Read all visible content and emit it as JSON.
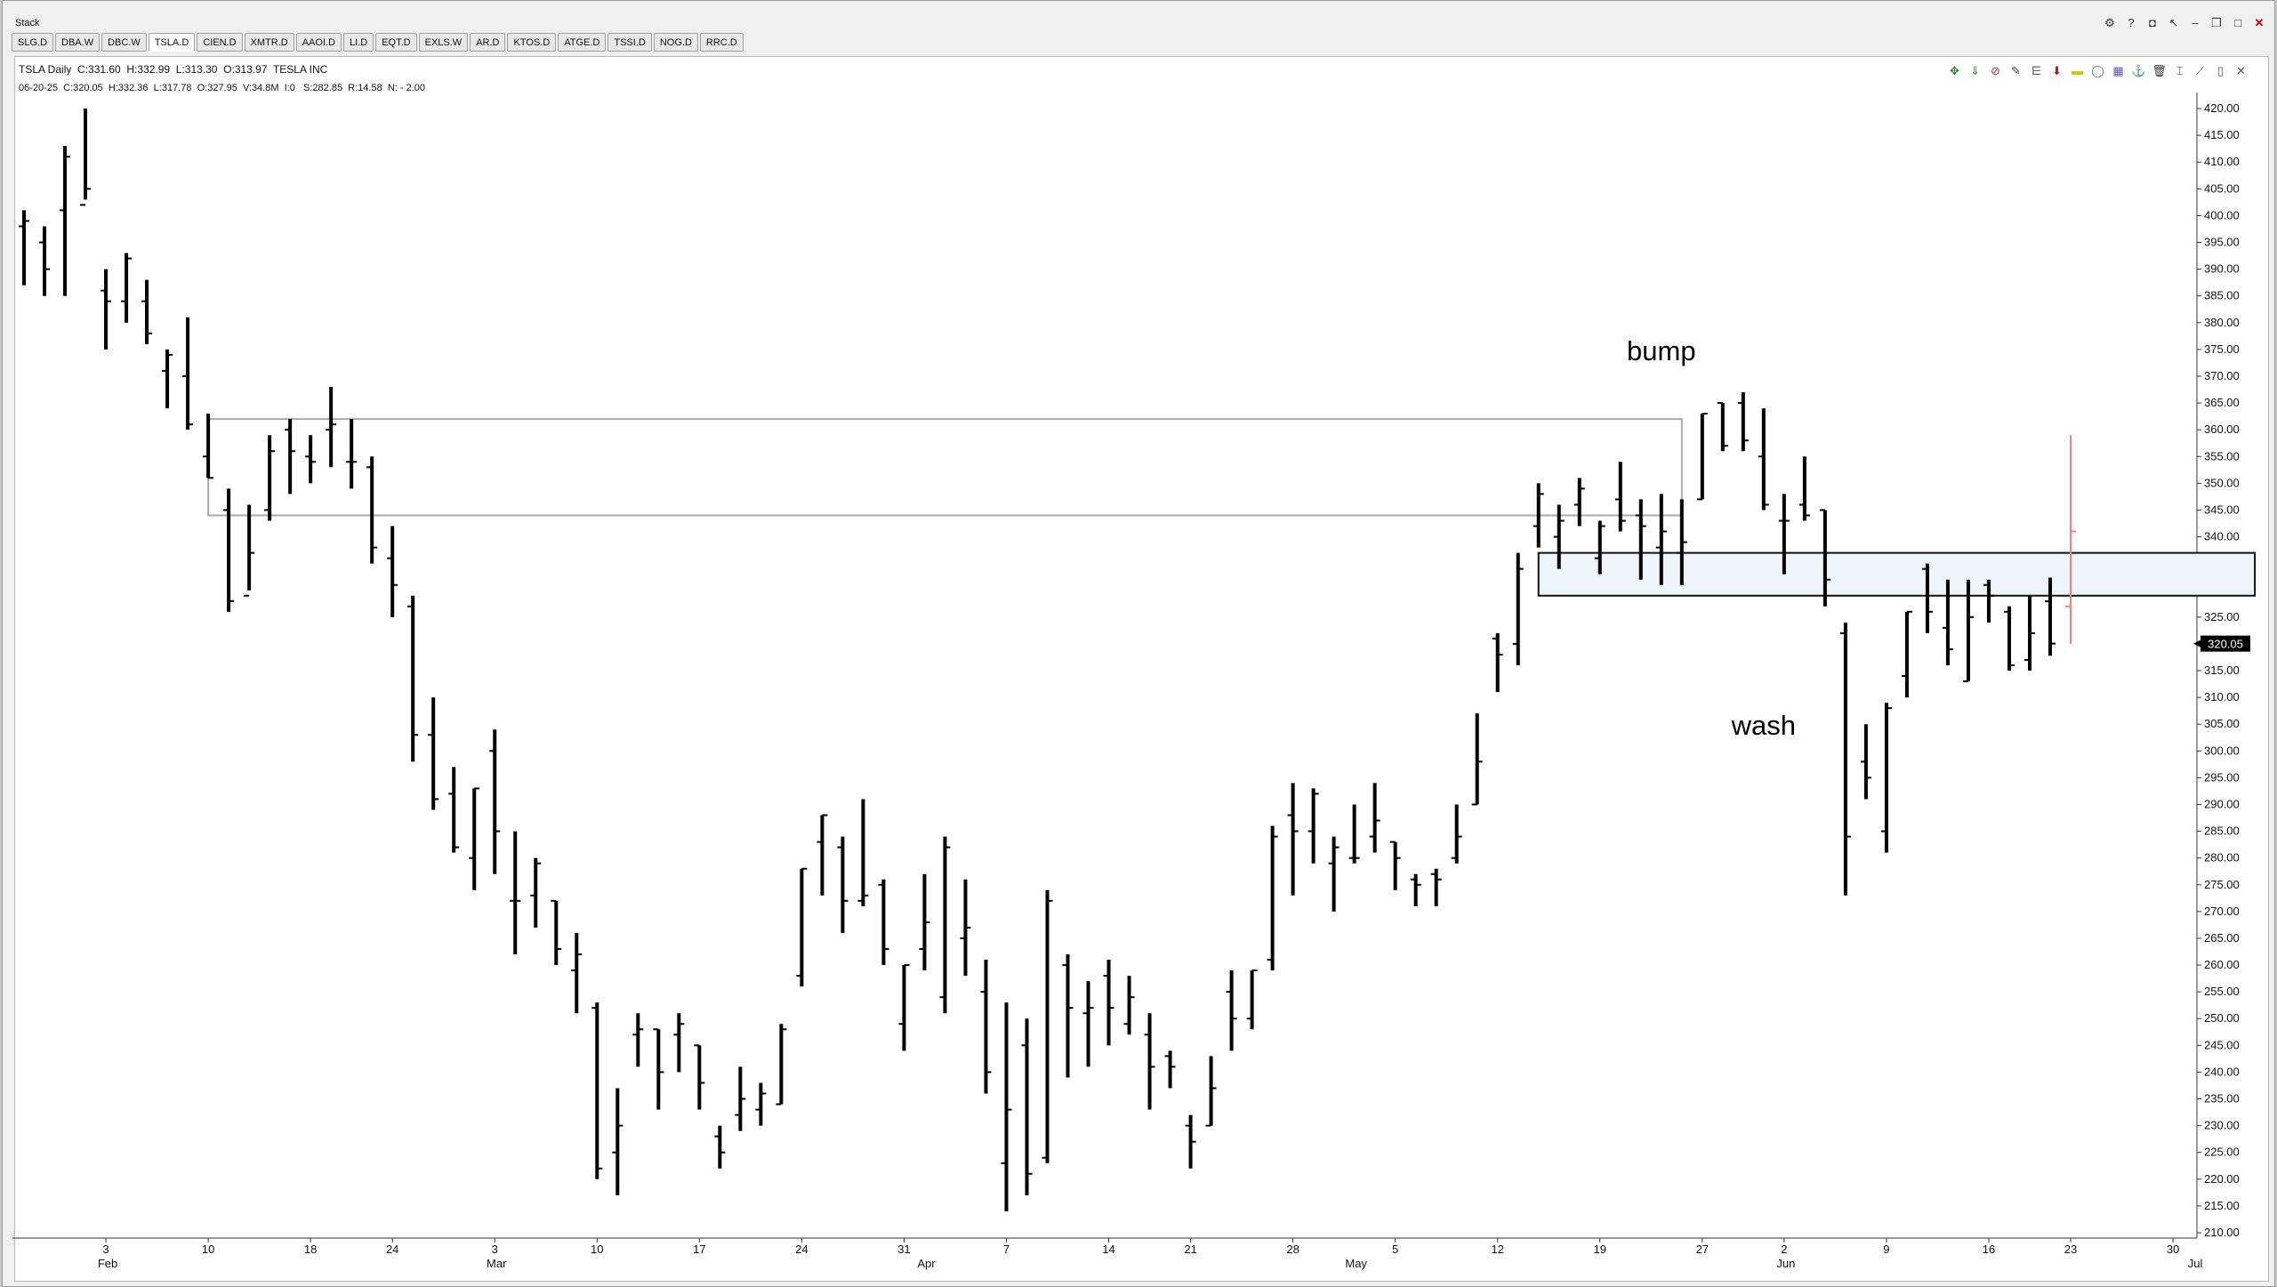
{
  "window": {
    "title": "Stack"
  },
  "window_buttons": [
    {
      "name": "chart-settings-icon",
      "glyph": "⚙"
    },
    {
      "name": "help-icon",
      "glyph": "?"
    },
    {
      "name": "camera-icon",
      "glyph": "◘"
    },
    {
      "name": "pointer-icon",
      "glyph": "↖"
    },
    {
      "name": "minimize-icon",
      "glyph": "–"
    },
    {
      "name": "restore-icon",
      "glyph": "❐"
    },
    {
      "name": "maximize-icon",
      "glyph": "□"
    },
    {
      "name": "close-icon",
      "glyph": "✕"
    }
  ],
  "tabs": [
    {
      "label": "SLG.D"
    },
    {
      "label": "DBA.W"
    },
    {
      "label": "DBC.W"
    },
    {
      "label": "TSLA.D",
      "active": true
    },
    {
      "label": "CIEN.D"
    },
    {
      "label": "XMTR.D"
    },
    {
      "label": "AAOI.D"
    },
    {
      "label": "LI.D"
    },
    {
      "label": "EQT.D"
    },
    {
      "label": "EXLS.W"
    },
    {
      "label": "AR.D"
    },
    {
      "label": "KTOS.D"
    },
    {
      "label": "ATGE.D"
    },
    {
      "label": "TSSI.D"
    },
    {
      "label": "NOG.D"
    },
    {
      "label": "RRC.D"
    }
  ],
  "header": {
    "symbol_line": "TSLA Daily  C:331.60  H:332.99  L:313.30  O:313.97  TESLA INC",
    "bar_line": "06-20-25  C:320.05  H:332.36  L:317.78  O:327.95  V:34.8M  I:0   S:282.85  R:14.58  N: - 2.00"
  },
  "toolbar": [
    {
      "name": "zoom-icon",
      "glyph": "✥",
      "color": "#2a7a2a"
    },
    {
      "name": "green-arrow-icon",
      "glyph": "⇓",
      "color": "#1a9a1a"
    },
    {
      "name": "no-entry-icon",
      "glyph": "⊘",
      "color": "#cc2222"
    },
    {
      "name": "pencil-icon",
      "glyph": "✎",
      "color": "#444"
    },
    {
      "name": "fibonacci-icon",
      "glyph": "⋿",
      "color": "#555"
    },
    {
      "name": "red-arrow-icon",
      "glyph": "⬇",
      "color": "#cc1111"
    },
    {
      "name": "rectangle-icon",
      "glyph": "▬",
      "color": "#d8c400"
    },
    {
      "name": "circle-icon",
      "glyph": "◯",
      "color": "#6666cc"
    },
    {
      "name": "grid-icon",
      "glyph": "▦",
      "color": "#5a5aa0"
    },
    {
      "name": "anchor-icon",
      "glyph": "⚓",
      "color": "#666"
    },
    {
      "name": "trash-icon",
      "glyph": "🗑",
      "color": "#333"
    },
    {
      "name": "cursor-icon",
      "glyph": "⌶",
      "color": "#333"
    },
    {
      "name": "draw-tools-icon",
      "glyph": "⟋",
      "color": "#555"
    },
    {
      "name": "lock-icon",
      "glyph": "▯",
      "color": "#555"
    },
    {
      "name": "crosshair-icon",
      "glyph": "✕",
      "color": "#555"
    }
  ],
  "chart_data": {
    "type": "ohlc",
    "symbol": "TSLA",
    "ylim": [
      209,
      423
    ],
    "y_ticks": [
      210,
      215,
      220,
      225,
      230,
      235,
      240,
      245,
      250,
      255,
      260,
      265,
      270,
      275,
      280,
      285,
      290,
      295,
      300,
      305,
      310,
      315,
      320,
      325,
      330,
      335,
      340,
      345,
      350,
      355,
      360,
      365,
      370,
      375,
      380,
      385,
      390,
      395,
      400,
      405,
      410,
      415,
      420
    ],
    "last_price_label": "320.05",
    "bars": [
      {
        "date": "2025-01-28",
        "o": 398,
        "h": 401,
        "l": 387,
        "c": 399
      },
      {
        "date": "2025-01-29",
        "o": 395,
        "h": 398,
        "l": 385,
        "c": 390
      },
      {
        "date": "2025-01-30",
        "o": 401,
        "h": 413,
        "l": 385,
        "c": 411
      },
      {
        "date": "2025-01-31",
        "o": 402,
        "h": 420,
        "l": 403,
        "c": 405
      },
      {
        "date": "2025-02-03",
        "o": 386,
        "h": 390,
        "l": 375,
        "c": 384
      },
      {
        "date": "2025-02-04",
        "o": 384,
        "h": 393,
        "l": 380,
        "c": 392
      },
      {
        "date": "2025-02-05",
        "o": 384,
        "h": 388,
        "l": 376,
        "c": 378
      },
      {
        "date": "2025-02-06",
        "o": 371,
        "h": 375,
        "l": 364,
        "c": 374
      },
      {
        "date": "2025-02-07",
        "o": 370,
        "h": 381,
        "l": 360,
        "c": 361
      },
      {
        "date": "2025-02-10",
        "o": 355,
        "h": 363,
        "l": 351,
        "c": 351
      },
      {
        "date": "2025-02-11",
        "o": 345,
        "h": 349,
        "l": 326,
        "c": 328
      },
      {
        "date": "2025-02-12",
        "o": 329,
        "h": 346,
        "l": 330,
        "c": 337
      },
      {
        "date": "2025-02-13",
        "o": 345,
        "h": 359,
        "l": 343,
        "c": 356
      },
      {
        "date": "2025-02-14",
        "o": 360,
        "h": 362,
        "l": 348,
        "c": 356
      },
      {
        "date": "2025-02-18",
        "o": 355,
        "h": 359,
        "l": 350,
        "c": 354
      },
      {
        "date": "2025-02-19",
        "o": 360,
        "h": 368,
        "l": 353,
        "c": 361
      },
      {
        "date": "2025-02-20",
        "o": 354,
        "h": 362,
        "l": 349,
        "c": 354
      },
      {
        "date": "2025-02-21",
        "o": 353,
        "h": 355,
        "l": 335,
        "c": 338
      },
      {
        "date": "2025-02-24",
        "o": 336,
        "h": 342,
        "l": 325,
        "c": 331
      },
      {
        "date": "2025-02-25",
        "o": 327,
        "h": 329,
        "l": 298,
        "c": 303
      },
      {
        "date": "2025-02-26",
        "o": 303,
        "h": 310,
        "l": 289,
        "c": 291
      },
      {
        "date": "2025-02-27",
        "o": 292,
        "h": 297,
        "l": 281,
        "c": 282
      },
      {
        "date": "2025-02-28",
        "o": 280,
        "h": 293,
        "l": 274,
        "c": 293
      },
      {
        "date": "2025-03-03",
        "o": 300,
        "h": 304,
        "l": 277,
        "c": 285
      },
      {
        "date": "2025-03-04",
        "o": 272,
        "h": 285,
        "l": 262,
        "c": 272
      },
      {
        "date": "2025-03-05",
        "o": 273,
        "h": 280,
        "l": 267,
        "c": 279
      },
      {
        "date": "2025-03-06",
        "o": 272,
        "h": 272,
        "l": 260,
        "c": 263
      },
      {
        "date": "2025-03-07",
        "o": 259,
        "h": 266,
        "l": 251,
        "c": 262
      },
      {
        "date": "2025-03-10",
        "o": 252,
        "h": 253,
        "l": 220,
        "c": 222
      },
      {
        "date": "2025-03-11",
        "o": 225,
        "h": 237,
        "l": 217,
        "c": 230
      },
      {
        "date": "2025-03-12",
        "o": 247,
        "h": 251,
        "l": 241,
        "c": 248
      },
      {
        "date": "2025-03-13",
        "o": 248,
        "h": 248,
        "l": 233,
        "c": 240
      },
      {
        "date": "2025-03-14",
        "o": 247,
        "h": 251,
        "l": 240,
        "c": 249
      },
      {
        "date": "2025-03-17",
        "o": 245,
        "h": 245,
        "l": 233,
        "c": 238
      },
      {
        "date": "2025-03-18",
        "o": 228,
        "h": 230,
        "l": 222,
        "c": 225
      },
      {
        "date": "2025-03-19",
        "o": 232,
        "h": 241,
        "l": 229,
        "c": 235
      },
      {
        "date": "2025-03-20",
        "o": 233,
        "h": 238,
        "l": 230,
        "c": 236
      },
      {
        "date": "2025-03-21",
        "o": 234,
        "h": 249,
        "l": 234,
        "c": 248
      },
      {
        "date": "2025-03-24",
        "o": 258,
        "h": 278,
        "l": 256,
        "c": 278
      },
      {
        "date": "2025-03-25",
        "o": 283,
        "h": 288,
        "l": 273,
        "c": 288
      },
      {
        "date": "2025-03-26",
        "o": 282,
        "h": 284,
        "l": 266,
        "c": 272
      },
      {
        "date": "2025-03-27",
        "o": 272,
        "h": 291,
        "l": 271,
        "c": 273
      },
      {
        "date": "2025-03-28",
        "o": 275,
        "h": 276,
        "l": 260,
        "c": 263
      },
      {
        "date": "2025-03-31",
        "o": 249,
        "h": 260,
        "l": 244,
        "c": 260
      },
      {
        "date": "2025-04-01",
        "o": 263,
        "h": 277,
        "l": 259,
        "c": 268
      },
      {
        "date": "2025-04-02",
        "o": 254,
        "h": 284,
        "l": 251,
        "c": 282
      },
      {
        "date": "2025-04-03",
        "o": 265,
        "h": 276,
        "l": 258,
        "c": 267
      },
      {
        "date": "2025-04-04",
        "o": 255,
        "h": 261,
        "l": 236,
        "c": 240
      },
      {
        "date": "2025-04-07",
        "o": 223,
        "h": 253,
        "l": 214,
        "c": 233
      },
      {
        "date": "2025-04-08",
        "o": 245,
        "h": 250,
        "l": 217,
        "c": 221
      },
      {
        "date": "2025-04-09",
        "o": 224,
        "h": 274,
        "l": 223,
        "c": 272
      },
      {
        "date": "2025-04-10",
        "o": 260,
        "h": 262,
        "l": 239,
        "c": 252
      },
      {
        "date": "2025-04-11",
        "o": 251,
        "h": 257,
        "l": 241,
        "c": 252
      },
      {
        "date": "2025-04-14",
        "o": 258,
        "h": 261,
        "l": 245,
        "c": 252
      },
      {
        "date": "2025-04-15",
        "o": 249,
        "h": 258,
        "l": 247,
        "c": 254
      },
      {
        "date": "2025-04-16",
        "o": 247,
        "h": 251,
        "l": 233,
        "c": 241
      },
      {
        "date": "2025-04-17",
        "o": 243,
        "h": 244,
        "l": 237,
        "c": 241
      },
      {
        "date": "2025-04-21",
        "o": 230,
        "h": 232,
        "l": 222,
        "c": 227
      },
      {
        "date": "2025-04-22",
        "o": 230,
        "h": 243,
        "l": 230,
        "c": 237
      },
      {
        "date": "2025-04-23",
        "o": 255,
        "h": 259,
        "l": 244,
        "c": 250
      },
      {
        "date": "2025-04-24",
        "o": 250,
        "h": 259,
        "l": 248,
        "c": 259
      },
      {
        "date": "2025-04-25",
        "o": 261,
        "h": 286,
        "l": 259,
        "c": 284
      },
      {
        "date": "2025-04-28",
        "o": 288,
        "h": 294,
        "l": 273,
        "c": 285
      },
      {
        "date": "2025-04-29",
        "o": 285,
        "h": 293,
        "l": 279,
        "c": 292
      },
      {
        "date": "2025-04-30",
        "o": 279,
        "h": 284,
        "l": 270,
        "c": 282
      },
      {
        "date": "2025-05-01",
        "o": 280,
        "h": 290,
        "l": 279,
        "c": 280
      },
      {
        "date": "2025-05-02",
        "o": 284,
        "h": 294,
        "l": 281,
        "c": 287
      },
      {
        "date": "2025-05-05",
        "o": 283,
        "h": 283,
        "l": 274,
        "c": 280
      },
      {
        "date": "2025-05-06",
        "o": 276,
        "h": 277,
        "l": 271,
        "c": 275
      },
      {
        "date": "2025-05-07",
        "o": 277,
        "h": 278,
        "l": 271,
        "c": 276
      },
      {
        "date": "2025-05-08",
        "o": 280,
        "h": 290,
        "l": 279,
        "c": 284
      },
      {
        "date": "2025-05-09",
        "o": 290,
        "h": 307,
        "l": 290,
        "c": 298
      },
      {
        "date": "2025-05-12",
        "o": 321,
        "h": 322,
        "l": 311,
        "c": 318
      },
      {
        "date": "2025-05-13",
        "o": 320,
        "h": 337,
        "l": 316,
        "c": 334
      },
      {
        "date": "2025-05-14",
        "o": 342,
        "h": 350,
        "l": 338,
        "c": 348
      },
      {
        "date": "2025-05-15",
        "o": 340,
        "h": 346,
        "l": 334,
        "c": 343
      },
      {
        "date": "2025-05-16",
        "o": 346,
        "h": 351,
        "l": 342,
        "c": 349
      },
      {
        "date": "2025-05-19",
        "o": 336,
        "h": 343,
        "l": 333,
        "c": 342
      },
      {
        "date": "2025-05-20",
        "o": 347,
        "h": 354,
        "l": 341,
        "c": 343
      },
      {
        "date": "2025-05-21",
        "o": 344,
        "h": 347,
        "l": 332,
        "c": 342
      },
      {
        "date": "2025-05-22",
        "o": 338,
        "h": 348,
        "l": 331,
        "c": 341
      },
      {
        "date": "2025-05-23",
        "o": 337,
        "h": 347,
        "l": 331,
        "c": 339
      },
      {
        "date": "2025-05-27",
        "o": 347,
        "h": 363,
        "l": 347,
        "c": 363
      },
      {
        "date": "2025-05-28",
        "o": 365,
        "h": 365,
        "l": 356,
        "c": 357
      },
      {
        "date": "2025-05-29",
        "o": 365,
        "h": 367,
        "l": 356,
        "c": 358
      },
      {
        "date": "2025-05-30",
        "o": 355,
        "h": 364,
        "l": 345,
        "c": 346
      },
      {
        "date": "2025-06-02",
        "o": 343,
        "h": 348,
        "l": 333,
        "c": 343
      },
      {
        "date": "2025-06-03",
        "o": 346,
        "h": 355,
        "l": 343,
        "c": 344
      },
      {
        "date": "2025-06-04",
        "o": 345,
        "h": 345,
        "l": 327,
        "c": 332
      },
      {
        "date": "2025-06-05",
        "o": 322,
        "h": 324,
        "l": 273,
        "c": 284
      },
      {
        "date": "2025-06-06",
        "o": 298,
        "h": 305,
        "l": 291,
        "c": 295
      },
      {
        "date": "2025-06-09",
        "o": 285,
        "h": 309,
        "l": 281,
        "c": 308
      },
      {
        "date": "2025-06-10",
        "o": 314,
        "h": 326,
        "l": 310,
        "c": 326
      },
      {
        "date": "2025-06-11",
        "o": 334,
        "h": 335,
        "l": 322,
        "c": 326
      },
      {
        "date": "2025-06-12",
        "o": 323,
        "h": 332,
        "l": 316,
        "c": 319
      },
      {
        "date": "2025-06-13",
        "o": 313,
        "h": 332,
        "l": 313,
        "c": 325
      },
      {
        "date": "2025-06-16",
        "o": 331,
        "h": 332,
        "l": 324,
        "c": 329
      },
      {
        "date": "2025-06-17",
        "o": 326,
        "h": 327,
        "l": 315,
        "c": 316
      },
      {
        "date": "2025-06-18",
        "o": 317,
        "h": 329,
        "l": 315,
        "c": 322
      },
      {
        "date": "2025-06-20",
        "o": 327.95,
        "h": 332.36,
        "l": 317.78,
        "c": 320.05
      },
      {
        "date": "2025-06-23",
        "o": 327,
        "h": 359,
        "l": 320,
        "c": 341,
        "highlight": true
      }
    ],
    "x_day_ticks": [
      {
        "label": "3",
        "date": "2025-02-03"
      },
      {
        "label": "10",
        "date": "2025-02-10"
      },
      {
        "label": "18",
        "date": "2025-02-18"
      },
      {
        "label": "24",
        "date": "2025-02-24"
      },
      {
        "label": "3",
        "date": "2025-03-03"
      },
      {
        "label": "10",
        "date": "2025-03-10"
      },
      {
        "label": "17",
        "date": "2025-03-17"
      },
      {
        "label": "24",
        "date": "2025-03-24"
      },
      {
        "label": "31",
        "date": "2025-03-31"
      },
      {
        "label": "7",
        "date": "2025-04-07"
      },
      {
        "label": "14",
        "date": "2025-04-14"
      },
      {
        "label": "21",
        "date": "2025-04-21"
      },
      {
        "label": "28",
        "date": "2025-04-28"
      },
      {
        "label": "5",
        "date": "2025-05-05"
      },
      {
        "label": "12",
        "date": "2025-05-12"
      },
      {
        "label": "19",
        "date": "2025-05-19"
      },
      {
        "label": "27",
        "date": "2025-05-27"
      },
      {
        "label": "2",
        "date": "2025-06-02"
      },
      {
        "label": "9",
        "date": "2025-06-09"
      },
      {
        "label": "16",
        "date": "2025-06-16"
      },
      {
        "label": "23",
        "date": "2025-06-23"
      },
      {
        "label": "30",
        "date": "2025-06-30"
      }
    ],
    "x_month_ticks": [
      {
        "label": "Feb",
        "date": "2025-02-03"
      },
      {
        "label": "Mar",
        "date": "2025-03-03"
      },
      {
        "label": "Apr",
        "date": "2025-04-01"
      },
      {
        "label": "May",
        "date": "2025-05-01"
      },
      {
        "label": "Jun",
        "date": "2025-06-02"
      },
      {
        "label": "Jul",
        "date": "2025-07-01"
      }
    ],
    "annotations": [
      {
        "type": "text",
        "text": "bump",
        "date": "2025-05-22",
        "y": 373
      },
      {
        "type": "text",
        "text": "wash",
        "date": "2025-05-30",
        "y": 303
      },
      {
        "type": "rect",
        "name": "resistance-zone-box",
        "x0": "2025-02-10",
        "x1": "2025-05-23",
        "y0": 344,
        "y1": 362,
        "stroke": "#aaaaaa",
        "fill": "none"
      },
      {
        "type": "rect",
        "name": "support-zone-box",
        "x0": "2025-05-14",
        "x1": "2025-07-04",
        "y0": 329,
        "y1": 337,
        "stroke": "#111111",
        "fill": "#edf4fa"
      }
    ],
    "colors": {
      "bars": "#000000",
      "highlight_bar": "#f08080",
      "background": "#ffffff",
      "axis": "#333333"
    },
    "grid": false
  }
}
